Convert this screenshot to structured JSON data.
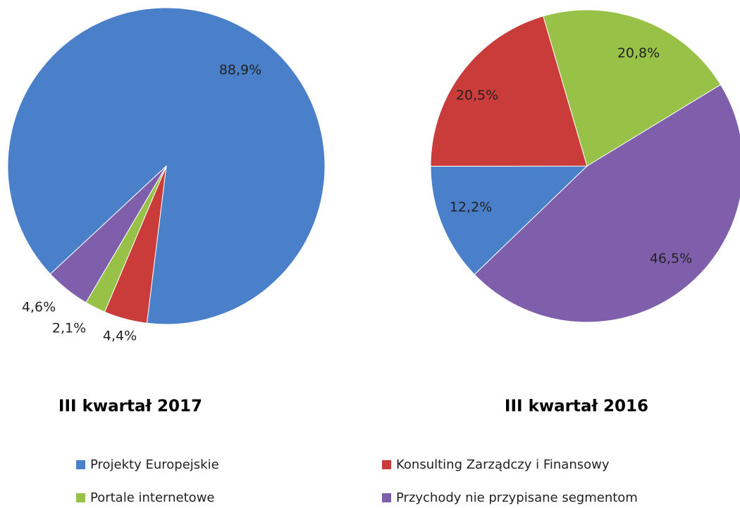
{
  "chart_data": [
    {
      "type": "pie",
      "title": "III kwartał 2017",
      "values": [
        88.9,
        4.4,
        2.1,
        4.6
      ],
      "value_labels": [
        "88,9%",
        "4,4%",
        "2,1%",
        "4,6%"
      ]
    },
    {
      "type": "pie",
      "title": "III kwartał 2016",
      "values": [
        12.2,
        20.5,
        20.8,
        46.5
      ],
      "value_labels": [
        "12,2%",
        "20,5%",
        "20,8%",
        "46,5%"
      ]
    }
  ],
  "legend": {
    "labels": [
      "Projekty Europejskie",
      "Konsulting Zarządczy i Finansowy",
      "Portale internetowe",
      "Przychody nie przypisane segmentom"
    ],
    "colors": [
      "#4a7fc9",
      "#c93c3a",
      "#97c247",
      "#7f5fab"
    ]
  }
}
